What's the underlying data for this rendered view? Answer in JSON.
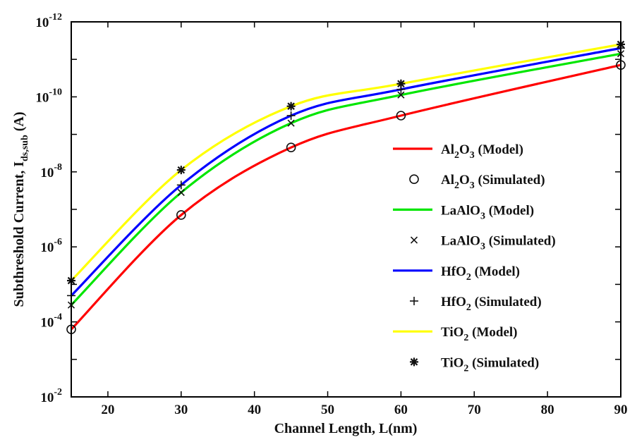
{
  "chart_data": {
    "type": "line",
    "x": [
      15,
      30,
      45,
      60,
      90
    ],
    "xlabel": "Channel Length, L(nm)",
    "ylabel": "Subthreshold Current, I",
    "ylabel_sub": "ds,sub",
    "ylabel_unit": " (A)",
    "xlim": [
      15,
      90
    ],
    "xticks": [
      20,
      30,
      40,
      50,
      60,
      70,
      80,
      90
    ],
    "ylim_exponent": [
      -2,
      -12
    ],
    "ytick_base": "10",
    "yticks": [
      {
        "exp": -12,
        "base": "10",
        "sup": "-12"
      },
      {
        "exp": -10,
        "base": "10",
        "sup": "-10"
      },
      {
        "exp": -8,
        "base": "10",
        "sup": "-8"
      },
      {
        "exp": -6,
        "base": "10",
        "sup": "-6"
      },
      {
        "exp": -4,
        "base": "10",
        "sup": "-4"
      },
      {
        "exp": -2,
        "base": "10",
        "sup": "-2"
      }
    ],
    "y_scale": "log",
    "y_axis_direction": "reversed",
    "grid": false,
    "legend_position": "right",
    "series": [
      {
        "key": "al2o3",
        "name": "Al2O3",
        "color": "#ff0000",
        "marker": "circle",
        "model_label": {
          "pre": "Al",
          "sub": "2",
          "post": "O",
          "sub2": "3",
          "tail": " (Model)"
        },
        "sim_label": {
          "pre": "Al",
          "sub": "2",
          "post": "O",
          "sub2": "3",
          "tail": " (Simulated)"
        },
        "model_exp": [
          -3.8,
          -6.85,
          -8.65,
          -9.5,
          -10.85
        ],
        "sim_exp": [
          -3.8,
          -6.85,
          -8.65,
          -9.5,
          -10.85
        ]
      },
      {
        "key": "laalo3",
        "name": "LaAlO3",
        "color": "#00e600",
        "marker": "x",
        "model_label": {
          "pre": "LaAlO",
          "sub": "3",
          "post": "",
          "sub2": "",
          "tail": " (Model)"
        },
        "sim_label": {
          "pre": "LaAlO",
          "sub": "3",
          "post": "",
          "sub2": "",
          "tail": " (Simulated)"
        },
        "model_exp": [
          -4.45,
          -7.45,
          -9.3,
          -10.05,
          -11.15
        ],
        "sim_exp": [
          -4.45,
          -7.45,
          -9.3,
          -10.05,
          -11.15
        ]
      },
      {
        "key": "hfo2",
        "name": "HfO2",
        "color": "#0000ff",
        "marker": "plus",
        "model_label": {
          "pre": "HfO",
          "sub": "2",
          "post": "",
          "sub2": "",
          "tail": " (Model)"
        },
        "sim_label": {
          "pre": "HfO",
          "sub": "2",
          "post": "",
          "sub2": "",
          "tail": " (Simulated)"
        },
        "model_exp": [
          -4.7,
          -7.65,
          -9.5,
          -10.2,
          -11.3
        ],
        "sim_exp": [
          -4.7,
          -7.65,
          -9.5,
          -10.2,
          -11.3
        ]
      },
      {
        "key": "tio2",
        "name": "TiO2",
        "color": "#ffff00",
        "marker": "asterisk",
        "model_label": {
          "pre": "TiO",
          "sub": "2",
          "post": "",
          "sub2": "",
          "tail": " (Model)"
        },
        "sim_label": {
          "pre": "TiO",
          "sub": "2",
          "post": "",
          "sub2": "",
          "tail": " (Simulated)"
        },
        "model_exp": [
          -5.1,
          -8.05,
          -9.75,
          -10.35,
          -11.4
        ],
        "sim_exp": [
          -5.1,
          -8.05,
          -9.75,
          -10.35,
          -11.4
        ]
      }
    ]
  }
}
